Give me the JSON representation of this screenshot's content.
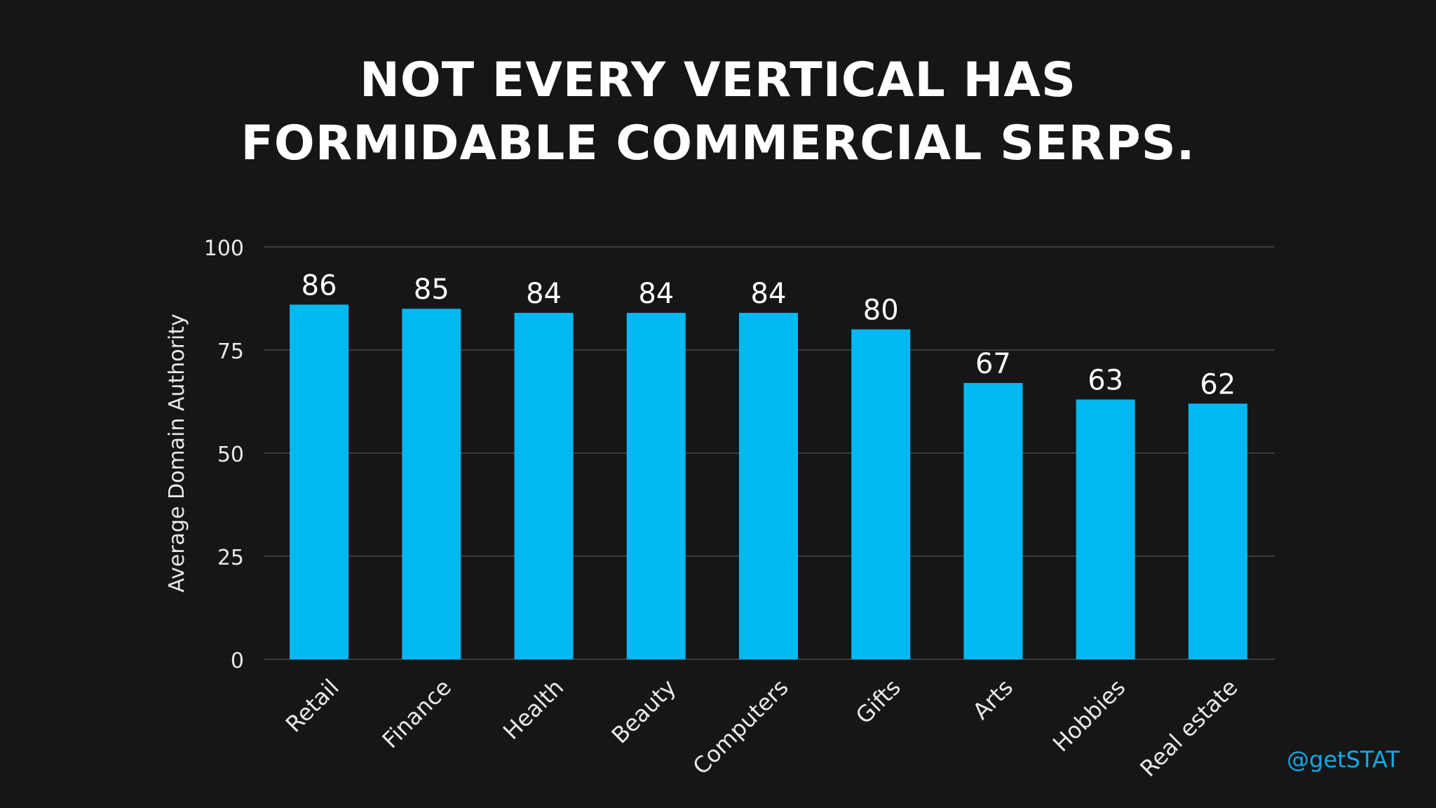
{
  "title": {
    "line1": "NOT EVERY VERTICAL HAS",
    "line2": "FORMIDABLE COMMERCIAL SERPS."
  },
  "handle": "@getSTAT",
  "colors": {
    "background": "#161616",
    "bar": "#01b8f1",
    "grid": "#4a4a4a",
    "text": "#ffffff",
    "handle": "#14a9e6"
  },
  "chart_data": {
    "type": "bar",
    "title": "NOT EVERY VERTICAL HAS FORMIDABLE COMMERCIAL SERPS.",
    "xlabel": "",
    "ylabel": "Average Domain Authority",
    "ylim": [
      0,
      100
    ],
    "yticks": [
      0,
      25,
      50,
      75,
      100
    ],
    "grid": true,
    "categories": [
      "Retail",
      "Finance",
      "Health",
      "Beauty",
      "Computers",
      "Gifts",
      "Arts",
      "Hobbies",
      "Real estate"
    ],
    "values": [
      86,
      85,
      84,
      84,
      84,
      80,
      67,
      63,
      62
    ]
  }
}
